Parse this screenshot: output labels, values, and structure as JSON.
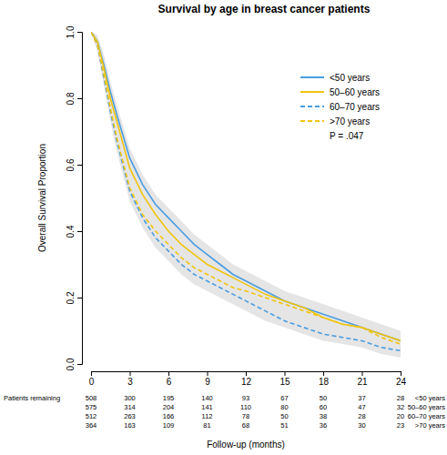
{
  "chart_data": {
    "type": "line",
    "title": "Survival by age in breast cancer patients",
    "x_label": "Follow-up (months)",
    "y_label": "Overall Survival Proportion",
    "risk_table_label": "Patients remaining",
    "annotations": [
      "P = .047"
    ],
    "legend": "top-right",
    "grid": false,
    "xlim": [
      0,
      24
    ],
    "ylim": [
      0,
      1
    ],
    "xticks": [
      0,
      3,
      6,
      9,
      12,
      15,
      18,
      21,
      24
    ],
    "yticks": [
      {
        "value": 0,
        "label": "0.0"
      },
      0.2,
      0.4,
      0.6,
      0.8,
      {
        "value": 1,
        "label": "1.0"
      }
    ],
    "x": [
      0,
      0.5,
      1,
      1.5,
      2,
      3,
      4,
      5,
      6,
      7,
      8,
      9,
      10,
      11,
      12,
      13.5,
      15,
      16.5,
      18,
      19.5,
      21,
      22.5,
      24
    ],
    "ci_band": {
      "lower": [
        1,
        0.94,
        0.84,
        0.73,
        0.64,
        0.49,
        0.41,
        0.35,
        0.31,
        0.27,
        0.24,
        0.22,
        0.2,
        0.18,
        0.16,
        0.13,
        0.11,
        0.09,
        0.07,
        0.06,
        0.05,
        0.03,
        0.02
      ],
      "upper": [
        1,
        0.99,
        0.93,
        0.85,
        0.78,
        0.65,
        0.57,
        0.51,
        0.47,
        0.43,
        0.39,
        0.36,
        0.33,
        0.3,
        0.28,
        0.25,
        0.22,
        0.2,
        0.18,
        0.16,
        0.14,
        0.12,
        0.1
      ]
    },
    "series": [
      {
        "name": "<50 years",
        "color": "#4a9de2",
        "line_style": "solid",
        "values": [
          1,
          0.97,
          0.9,
          0.82,
          0.75,
          0.62,
          0.54,
          0.48,
          0.44,
          0.4,
          0.36,
          0.33,
          0.3,
          0.27,
          0.25,
          0.22,
          0.19,
          0.17,
          0.15,
          0.13,
          0.11,
          0.09,
          0.07
        ],
        "at_risk": [
          508,
          300,
          195,
          140,
          93,
          67,
          50,
          37,
          28
        ]
      },
      {
        "name": "50–60 years",
        "color": "#f1c410",
        "line_style": "solid",
        "values": [
          1,
          0.97,
          0.89,
          0.8,
          0.73,
          0.59,
          0.51,
          0.45,
          0.4,
          0.36,
          0.33,
          0.3,
          0.28,
          0.26,
          0.24,
          0.21,
          0.19,
          0.17,
          0.14,
          0.12,
          0.11,
          0.09,
          0.07
        ],
        "at_risk": [
          575,
          314,
          204,
          141,
          110,
          80,
          60,
          47,
          32
        ]
      },
      {
        "name": "60–70 years",
        "color": "#4a9de2",
        "line_style": "dashed",
        "values": [
          1,
          0.96,
          0.86,
          0.76,
          0.67,
          0.52,
          0.44,
          0.38,
          0.34,
          0.3,
          0.27,
          0.25,
          0.23,
          0.21,
          0.19,
          0.16,
          0.13,
          0.11,
          0.09,
          0.08,
          0.07,
          0.05,
          0.04
        ],
        "at_risk": [
          512,
          263,
          166,
          112,
          78,
          50,
          38,
          28,
          20
        ]
      },
      {
        "name": ">70 years",
        "color": "#f1c410",
        "line_style": "dashed",
        "values": [
          1,
          0.96,
          0.87,
          0.77,
          0.68,
          0.53,
          0.45,
          0.4,
          0.36,
          0.32,
          0.29,
          0.27,
          0.25,
          0.23,
          0.22,
          0.2,
          0.18,
          0.16,
          0.14,
          0.12,
          0.11,
          0.08,
          0.06
        ],
        "at_risk": [
          364,
          163,
          109,
          81,
          68,
          51,
          36,
          30,
          23
        ]
      }
    ]
  }
}
